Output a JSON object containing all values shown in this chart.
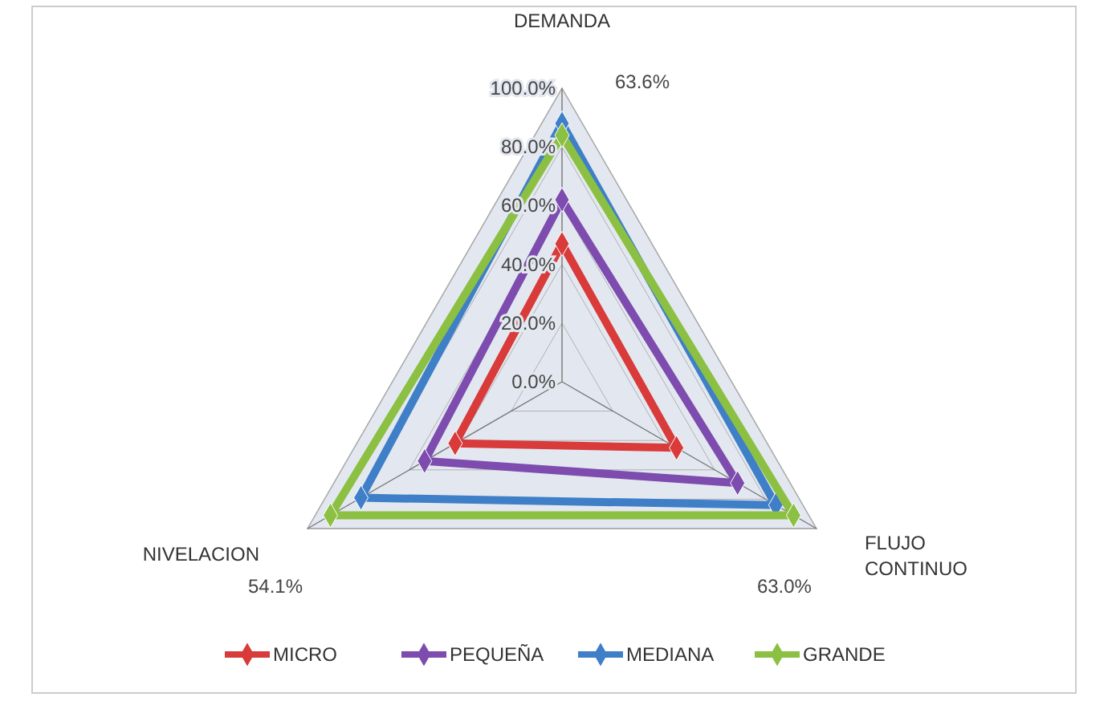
{
  "chart_data": {
    "type": "radar",
    "categories": [
      "DEMANDA",
      "FLUJO CONTINUO",
      "NIVELACION"
    ],
    "series": [
      {
        "name": "MICRO",
        "color": "#d93a3a",
        "values": [
          0.47,
          0.45,
          0.42
        ]
      },
      {
        "name": "PEQUEÑA",
        "color": "#7d4cae",
        "values": [
          0.62,
          0.69,
          0.54
        ]
      },
      {
        "name": "MEDIANA",
        "color": "#3f7fc8",
        "values": [
          0.88,
          0.84,
          0.79
        ]
      },
      {
        "name": "GRANDE",
        "color": "#8cc043",
        "values": [
          0.84,
          0.91,
          0.91
        ]
      }
    ],
    "ylim": [
      0,
      1
    ],
    "yticks": [
      {
        "value": 0,
        "label": "0.0%"
      },
      {
        "value": 0.2,
        "label": "20.0%"
      },
      {
        "value": 0.4,
        "label": "40.0%"
      },
      {
        "value": 0.6,
        "label": "60.0%"
      },
      {
        "value": 0.8,
        "label": "80.0%"
      },
      {
        "value": 1,
        "label": "100.0%"
      }
    ],
    "grid": true,
    "legend": "bottom",
    "marker": "diamond",
    "annotations": [
      "63.6%",
      "63.0%",
      "54.1%"
    ]
  }
}
